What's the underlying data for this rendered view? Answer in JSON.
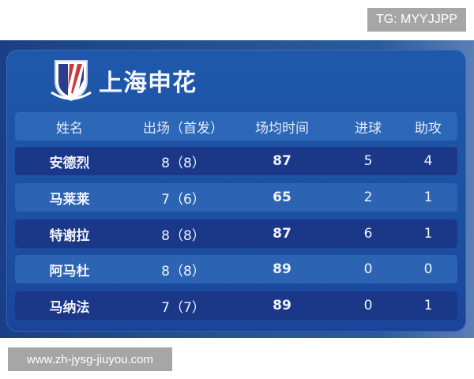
{
  "watermarks": {
    "top_right": "TG: MYYJJPP",
    "bottom_left": "www.zh-jysg-jiuyou.com"
  },
  "team": {
    "name": "上海申花",
    "logo_icon": "shanghai-shenhua-crest"
  },
  "table": {
    "headers": [
      "姓名",
      "出场（首发）",
      "场均时间",
      "进球",
      "助攻"
    ],
    "rows": [
      [
        "安德烈",
        "8（8）",
        "87",
        "5",
        "4"
      ],
      [
        "马莱莱",
        "7（6）",
        "65",
        "2",
        "1"
      ],
      [
        "特谢拉",
        "8（8）",
        "87",
        "6",
        "1"
      ],
      [
        "阿马杜",
        "8（8）",
        "89",
        "0",
        "0"
      ],
      [
        "马纳法",
        "7（7）",
        "89",
        "0",
        "1"
      ]
    ]
  },
  "colors": {
    "panel": "#1f58ab",
    "row_dark": "#1b3788",
    "row_light": "#2c63b3"
  }
}
